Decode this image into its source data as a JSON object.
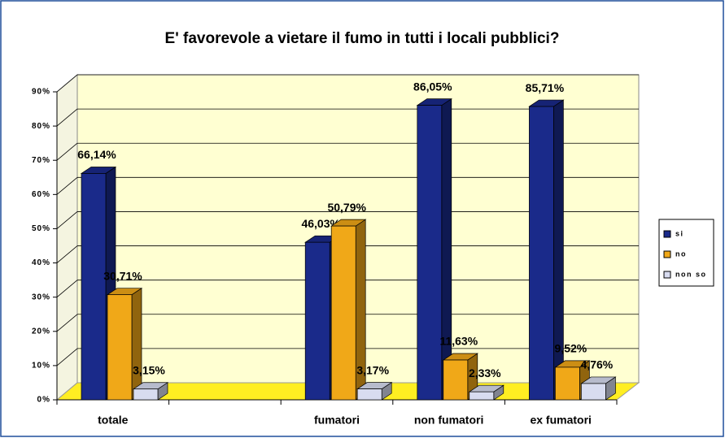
{
  "chart_data": {
    "type": "bar3d",
    "title": "E' favorevole a vietare il fumo in tutti i locali pubblici?",
    "categories": [
      "totale",
      null,
      "fumatori",
      "non fumatori",
      "ex fumatori"
    ],
    "series": [
      {
        "name": "si",
        "color": "#1a2a8a",
        "values": [
          66.14,
          null,
          46.03,
          86.05,
          85.71
        ],
        "value_labels": [
          "66,14%",
          null,
          "46,03%",
          "86,05%",
          "85,71%"
        ]
      },
      {
        "name": "no",
        "color": "#f0a818",
        "values": [
          30.71,
          null,
          50.79,
          11.63,
          9.52
        ],
        "value_labels": [
          "30,71%",
          null,
          "50,79%",
          "11,63%",
          "9,52%"
        ]
      },
      {
        "name": "non so",
        "color": "#d8dcf0",
        "values": [
          3.15,
          null,
          3.17,
          2.33,
          4.76
        ],
        "value_labels": [
          "3,15%",
          null,
          "3,17%",
          "2,33%",
          "4,76%"
        ]
      }
    ],
    "ylim": [
      0,
      90
    ],
    "yticks": [
      {
        "value": 0,
        "label": "0%"
      },
      {
        "value": 10,
        "label": "10%"
      },
      {
        "value": 20,
        "label": "20%"
      },
      {
        "value": 30,
        "label": "30%"
      },
      {
        "value": 40,
        "label": "40%"
      },
      {
        "value": 50,
        "label": "50%"
      },
      {
        "value": 60,
        "label": "60%"
      },
      {
        "value": 70,
        "label": "70%"
      },
      {
        "value": 80,
        "label": "80%"
      },
      {
        "value": 90,
        "label": "90%"
      }
    ],
    "grid": true,
    "legend": "right"
  }
}
